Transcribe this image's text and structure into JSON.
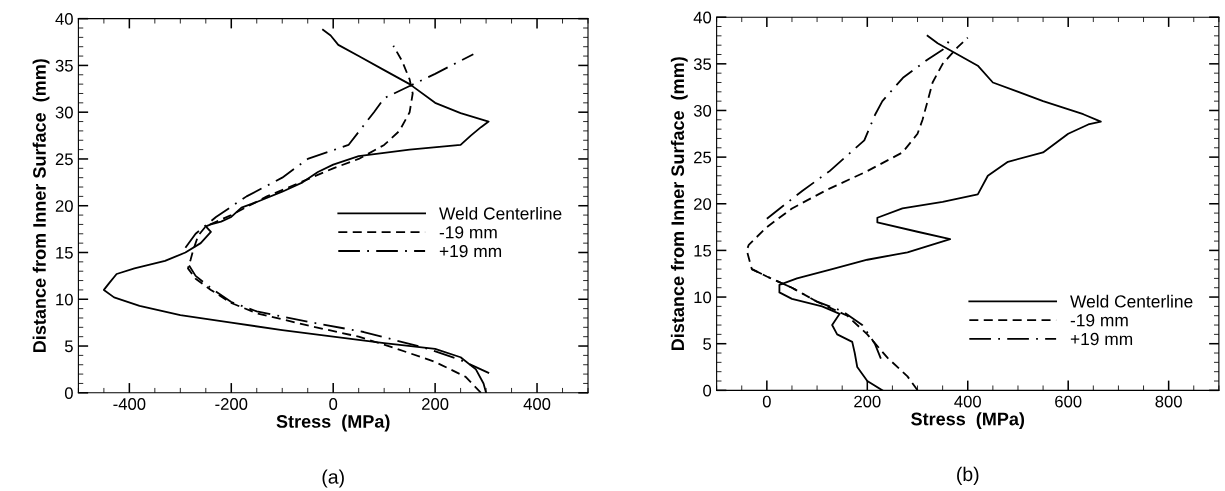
{
  "chart_data": [
    {
      "type": "line",
      "xlabel": "Stress  (MPa)",
      "ylabel": "Distance from Inner Surface  (mm)",
      "xlim": [
        -500,
        500
      ],
      "xticks": [
        -400,
        -200,
        0,
        200,
        400
      ],
      "ylim": [
        0,
        40
      ],
      "yticks": [
        0,
        5,
        10,
        15,
        20,
        25,
        30,
        35,
        40
      ],
      "legend": "right",
      "annotations": [
        "(a)"
      ],
      "series": [
        {
          "name": "Weld Centerline",
          "color": "#000000",
          "line_style": "solid",
          "x": [
            300,
            295,
            280,
            250,
            200,
            100,
            0,
            -100,
            -200,
            -300,
            -380,
            -430,
            -450,
            -440,
            -425,
            -390,
            -330,
            -290,
            -260,
            -240,
            -250,
            -240,
            -220,
            -200,
            -180,
            -150,
            -100,
            -60,
            -30,
            0,
            50,
            150,
            250,
            270,
            290,
            305,
            250,
            200,
            150,
            100,
            50,
            10,
            -5,
            -20
          ],
          "values": [
            0,
            1,
            2.5,
            3.8,
            4.7,
            5.3,
            6,
            6.7,
            7.5,
            8.3,
            9.3,
            10.2,
            11,
            11.7,
            12.7,
            13.3,
            14.1,
            15,
            16,
            17.2,
            17.8,
            18,
            18.3,
            18.8,
            19.8,
            20.4,
            21.5,
            22.5,
            23.6,
            24.4,
            25.3,
            26,
            26.5,
            27.5,
            28.4,
            29,
            29.9,
            31,
            33,
            34.5,
            36,
            37.2,
            38.2,
            38.8
          ]
        },
        {
          "name": "-19 mm",
          "color": "#000000",
          "line_style": "dashed",
          "x": [
            290,
            260,
            200,
            120,
            50,
            -50,
            -150,
            -200,
            -240,
            -270,
            -285,
            -280,
            -275,
            -265,
            -250,
            -200,
            -130,
            -60,
            0,
            50,
            100,
            130,
            150,
            156,
            150,
            135,
            118
          ],
          "values": [
            0,
            1.7,
            3.3,
            4.8,
            6,
            7.2,
            8.5,
            9.6,
            11,
            12.2,
            13.3,
            14.2,
            15.2,
            16.8,
            17.8,
            19,
            21,
            22.6,
            24,
            25,
            26.5,
            28,
            30,
            32,
            33.5,
            35.5,
            37.1
          ]
        },
        {
          "name": "+19 mm",
          "color": "#000000",
          "line_style": "dashdot",
          "x": [
            306,
            250,
            180,
            60,
            -50,
            -150,
            -200,
            -240,
            -270,
            -286,
            null,
            -290,
            -270,
            -230,
            -170,
            -100,
            -50,
            30,
            80,
            100,
            150,
            200,
            275
          ],
          "values": [
            2.1,
            3.5,
            4.8,
            6.5,
            7.6,
            8.7,
            9.7,
            11.2,
            12.5,
            13.9,
            null,
            15.5,
            17,
            18.8,
            21,
            23,
            25,
            26.5,
            30,
            31.5,
            32.8,
            34.1,
            36.2
          ]
        }
      ]
    },
    {
      "type": "line",
      "xlabel": "Stress  (MPa)",
      "ylabel": "Distance from Inner Surface  (mm)",
      "xlim": [
        -100,
        900
      ],
      "xticks": [
        0,
        200,
        400,
        600,
        800
      ],
      "ylim": [
        0,
        40
      ],
      "yticks": [
        0,
        5,
        10,
        15,
        20,
        25,
        30,
        35,
        40
      ],
      "legend": "bottom right",
      "annotations": [
        "(b)"
      ],
      "series": [
        {
          "name": "Weld Centerline",
          "color": "#000000",
          "line_style": "solid",
          "x": [
            230,
            200,
            180,
            175,
            170,
            140,
            130,
            145,
            110,
            50,
            25,
            25,
            60,
            130,
            200,
            280,
            365,
            300,
            220,
            220,
            270,
            350,
            420,
            440,
            480,
            550,
            600,
            640,
            665,
            630,
            550,
            450,
            420,
            380,
            340,
            320
          ],
          "values": [
            0,
            1,
            2.5,
            4,
            5.2,
            6,
            7,
            8.2,
            9,
            9.8,
            10.5,
            11.3,
            12,
            13,
            14,
            14.8,
            16.2,
            17,
            18,
            18.5,
            19.5,
            20.2,
            21,
            23,
            24.5,
            25.5,
            27.5,
            28.5,
            28.8,
            29.6,
            31,
            33,
            34.8,
            36,
            37.2,
            38
          ]
        },
        {
          "name": "-19 mm",
          "color": "#000000",
          "line_style": "dashed",
          "x": [
            300,
            280,
            240,
            200,
            160,
            100,
            50,
            0,
            -30,
            -40,
            -36,
            0,
            50,
            120,
            200,
            270,
            300,
            310,
            320,
            330,
            350,
            380,
            400
          ],
          "values": [
            0,
            1.5,
            3.5,
            6,
            8,
            9.5,
            11,
            12.2,
            13,
            15,
            15.6,
            17.5,
            19.5,
            21.5,
            23.5,
            25.5,
            27.5,
            29,
            31,
            33,
            35,
            36.8,
            37.8
          ]
        },
        {
          "name": "+19 mm",
          "color": "#000000",
          "line_style": "dashdot",
          "x": [
            227,
            215,
            190,
            150,
            100,
            50,
            0,
            -30,
            null,
            0,
            71,
            125,
            194,
            216,
            230,
            271,
            321,
            350,
            365
          ],
          "values": [
            3.4,
            5,
            7,
            8.5,
            9.5,
            11,
            12.2,
            13,
            null,
            18.4,
            21.4,
            23.5,
            26.8,
            29.6,
            31,
            33.5,
            35.5,
            36.5,
            37.6
          ]
        }
      ]
    }
  ]
}
